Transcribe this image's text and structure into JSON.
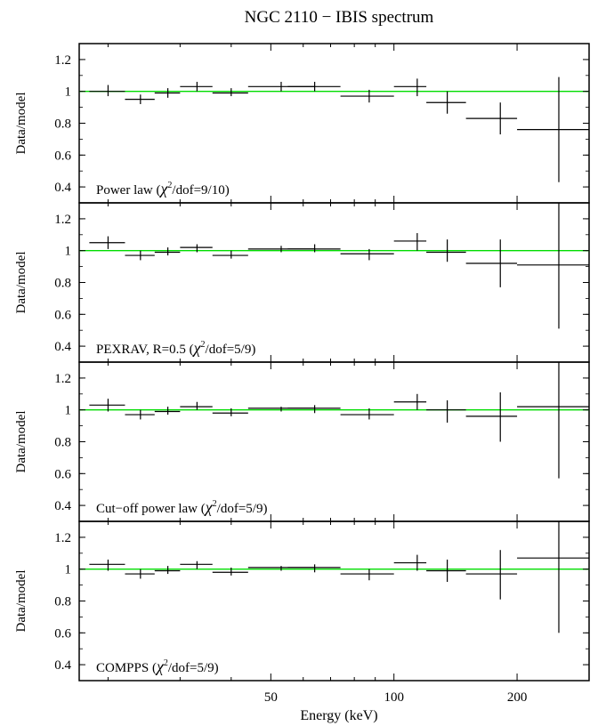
{
  "title": "NGC 2110 − IBIS spectrum",
  "chart_data": [
    {
      "type": "scatter",
      "label_main": "Power law (",
      "label_chi": "χ",
      "label_sup": "2",
      "label_tail": "/dof=9/10)",
      "ylabel": "Data/model",
      "ylim": [
        0.3,
        1.3
      ],
      "yticks": [
        "0.4",
        "0.6",
        "0.8",
        "1",
        "1.2"
      ],
      "model_line": 1,
      "model_color": "#00dd00",
      "points": [
        {
          "x": 20.0,
          "xlo": 18.0,
          "xhi": 22.0,
          "y": 1.0,
          "ylo": 0.97,
          "yhi": 1.04
        },
        {
          "x": 24.0,
          "xlo": 22.0,
          "xhi": 26.0,
          "y": 0.95,
          "ylo": 0.92,
          "yhi": 0.98
        },
        {
          "x": 28.0,
          "xlo": 26.0,
          "xhi": 30.0,
          "y": 0.99,
          "ylo": 0.96,
          "yhi": 1.02
        },
        {
          "x": 33.0,
          "xlo": 30.0,
          "xhi": 36.0,
          "y": 1.03,
          "ylo": 1.0,
          "yhi": 1.06
        },
        {
          "x": 40.0,
          "xlo": 36.0,
          "xhi": 44.0,
          "y": 0.99,
          "ylo": 0.97,
          "yhi": 1.02
        },
        {
          "x": 53.0,
          "xlo": 44.0,
          "xhi": 64.0,
          "y": 1.03,
          "ylo": 1.0,
          "yhi": 1.06
        },
        {
          "x": 64.0,
          "xlo": 55.0,
          "xhi": 74.0,
          "y": 1.03,
          "ylo": 1.0,
          "yhi": 1.06
        },
        {
          "x": 87.0,
          "xlo": 74.0,
          "xhi": 100.0,
          "y": 0.97,
          "ylo": 0.93,
          "yhi": 1.01
        },
        {
          "x": 114.0,
          "xlo": 100.0,
          "xhi": 120.0,
          "y": 1.03,
          "ylo": 0.97,
          "yhi": 1.08
        },
        {
          "x": 135.0,
          "xlo": 120.0,
          "xhi": 150.0,
          "y": 0.93,
          "ylo": 0.86,
          "yhi": 1.0
        },
        {
          "x": 182.0,
          "xlo": 150.0,
          "xhi": 200.0,
          "y": 0.83,
          "ylo": 0.73,
          "yhi": 0.93
        },
        {
          "x": 253.0,
          "xlo": 200.0,
          "xhi": 300.0,
          "y": 0.76,
          "ylo": 0.43,
          "yhi": 1.09
        }
      ]
    },
    {
      "type": "scatter",
      "label_main": "PEXRAV, R=0.5 (",
      "label_chi": "χ",
      "label_sup": "2",
      "label_tail": "/dof=5/9)",
      "ylabel": "Data/model",
      "ylim": [
        0.3,
        1.3
      ],
      "yticks": [
        "0.4",
        "0.6",
        "0.8",
        "1",
        "1.2"
      ],
      "model_line": 1,
      "model_color": "#00dd00",
      "points": [
        {
          "x": 20.0,
          "xlo": 18.0,
          "xhi": 22.0,
          "y": 1.05,
          "ylo": 1.01,
          "yhi": 1.09
        },
        {
          "x": 24.0,
          "xlo": 22.0,
          "xhi": 26.0,
          "y": 0.97,
          "ylo": 0.94,
          "yhi": 1.0
        },
        {
          "x": 28.0,
          "xlo": 26.0,
          "xhi": 30.0,
          "y": 0.99,
          "ylo": 0.97,
          "yhi": 1.02
        },
        {
          "x": 33.0,
          "xlo": 30.0,
          "xhi": 36.0,
          "y": 1.02,
          "ylo": 0.99,
          "yhi": 1.04
        },
        {
          "x": 40.0,
          "xlo": 36.0,
          "xhi": 44.0,
          "y": 0.97,
          "ylo": 0.95,
          "yhi": 1.0
        },
        {
          "x": 53.0,
          "xlo": 44.0,
          "xhi": 64.0,
          "y": 1.01,
          "ylo": 0.99,
          "yhi": 1.03
        },
        {
          "x": 64.0,
          "xlo": 55.0,
          "xhi": 74.0,
          "y": 1.01,
          "ylo": 0.99,
          "yhi": 1.04
        },
        {
          "x": 87.0,
          "xlo": 74.0,
          "xhi": 100.0,
          "y": 0.98,
          "ylo": 0.94,
          "yhi": 1.01
        },
        {
          "x": 114.0,
          "xlo": 100.0,
          "xhi": 120.0,
          "y": 1.06,
          "ylo": 1.0,
          "yhi": 1.11
        },
        {
          "x": 135.0,
          "xlo": 120.0,
          "xhi": 150.0,
          "y": 0.99,
          "ylo": 0.93,
          "yhi": 1.07
        },
        {
          "x": 182.0,
          "xlo": 150.0,
          "xhi": 200.0,
          "y": 0.92,
          "ylo": 0.77,
          "yhi": 1.07
        },
        {
          "x": 253.0,
          "xlo": 200.0,
          "xhi": 300.0,
          "y": 0.91,
          "ylo": 0.51,
          "yhi": 1.3
        }
      ]
    },
    {
      "type": "scatter",
      "label_main": "Cut−off power law (",
      "label_chi": "χ",
      "label_sup": "2",
      "label_tail": "/dof=5/9)",
      "ylabel": "Data/model",
      "ylim": [
        0.3,
        1.3
      ],
      "yticks": [
        "0.4",
        "0.6",
        "0.8",
        "1",
        "1.2"
      ],
      "model_line": 1,
      "model_color": "#00dd00",
      "points": [
        {
          "x": 20.0,
          "xlo": 18.0,
          "xhi": 22.0,
          "y": 1.03,
          "ylo": 0.99,
          "yhi": 1.07
        },
        {
          "x": 24.0,
          "xlo": 22.0,
          "xhi": 26.0,
          "y": 0.97,
          "ylo": 0.94,
          "yhi": 1.0
        },
        {
          "x": 28.0,
          "xlo": 26.0,
          "xhi": 30.0,
          "y": 0.99,
          "ylo": 0.97,
          "yhi": 1.02
        },
        {
          "x": 33.0,
          "xlo": 30.0,
          "xhi": 36.0,
          "y": 1.02,
          "ylo": 1.0,
          "yhi": 1.05
        },
        {
          "x": 40.0,
          "xlo": 36.0,
          "xhi": 44.0,
          "y": 0.98,
          "ylo": 0.96,
          "yhi": 1.01
        },
        {
          "x": 53.0,
          "xlo": 44.0,
          "xhi": 64.0,
          "y": 1.01,
          "ylo": 0.99,
          "yhi": 1.02
        },
        {
          "x": 64.0,
          "xlo": 55.0,
          "xhi": 74.0,
          "y": 1.01,
          "ylo": 0.98,
          "yhi": 1.03
        },
        {
          "x": 87.0,
          "xlo": 74.0,
          "xhi": 100.0,
          "y": 0.97,
          "ylo": 0.94,
          "yhi": 1.01
        },
        {
          "x": 114.0,
          "xlo": 100.0,
          "xhi": 120.0,
          "y": 1.05,
          "ylo": 1.0,
          "yhi": 1.1
        },
        {
          "x": 135.0,
          "xlo": 120.0,
          "xhi": 150.0,
          "y": 1.0,
          "ylo": 0.92,
          "yhi": 1.06
        },
        {
          "x": 182.0,
          "xlo": 150.0,
          "xhi": 200.0,
          "y": 0.96,
          "ylo": 0.8,
          "yhi": 1.11
        },
        {
          "x": 253.0,
          "xlo": 200.0,
          "xhi": 300.0,
          "y": 1.02,
          "ylo": 0.57,
          "yhi": 1.3
        }
      ]
    },
    {
      "type": "scatter",
      "label_main": "COMPPS (",
      "label_chi": "χ",
      "label_sup": "2",
      "label_tail": "/dof=5/9)",
      "ylabel": "Data/model",
      "ylim": [
        0.3,
        1.3
      ],
      "yticks": [
        "0.4",
        "0.6",
        "0.8",
        "1",
        "1.2"
      ],
      "model_line": 1,
      "model_color": "#00dd00",
      "points": [
        {
          "x": 20.0,
          "xlo": 18.0,
          "xhi": 22.0,
          "y": 1.03,
          "ylo": 0.99,
          "yhi": 1.06
        },
        {
          "x": 24.0,
          "xlo": 22.0,
          "xhi": 26.0,
          "y": 0.97,
          "ylo": 0.94,
          "yhi": 1.0
        },
        {
          "x": 28.0,
          "xlo": 26.0,
          "xhi": 30.0,
          "y": 0.99,
          "ylo": 0.97,
          "yhi": 1.02
        },
        {
          "x": 33.0,
          "xlo": 30.0,
          "xhi": 36.0,
          "y": 1.03,
          "ylo": 1.0,
          "yhi": 1.05
        },
        {
          "x": 40.0,
          "xlo": 36.0,
          "xhi": 44.0,
          "y": 0.98,
          "ylo": 0.96,
          "yhi": 1.01
        },
        {
          "x": 53.0,
          "xlo": 44.0,
          "xhi": 64.0,
          "y": 1.01,
          "ylo": 0.99,
          "yhi": 1.02
        },
        {
          "x": 64.0,
          "xlo": 55.0,
          "xhi": 74.0,
          "y": 1.01,
          "ylo": 0.98,
          "yhi": 1.03
        },
        {
          "x": 87.0,
          "xlo": 74.0,
          "xhi": 100.0,
          "y": 0.97,
          "ylo": 0.93,
          "yhi": 1.0
        },
        {
          "x": 114.0,
          "xlo": 100.0,
          "xhi": 120.0,
          "y": 1.04,
          "ylo": 0.99,
          "yhi": 1.09
        },
        {
          "x": 135.0,
          "xlo": 120.0,
          "xhi": 150.0,
          "y": 0.99,
          "ylo": 0.92,
          "yhi": 1.06
        },
        {
          "x": 182.0,
          "xlo": 150.0,
          "xhi": 200.0,
          "y": 0.97,
          "ylo": 0.81,
          "yhi": 1.12
        },
        {
          "x": 253.0,
          "xlo": 200.0,
          "xhi": 300.0,
          "y": 1.07,
          "ylo": 0.6,
          "yhi": 1.3
        }
      ]
    }
  ],
  "xaxis": {
    "label": "Energy (keV)",
    "scale": "log",
    "xlim": [
      17,
      300
    ],
    "ticks": [
      {
        "value": 50,
        "label": "50"
      },
      {
        "value": 100,
        "label": "100"
      },
      {
        "value": 200,
        "label": "200"
      }
    ]
  }
}
